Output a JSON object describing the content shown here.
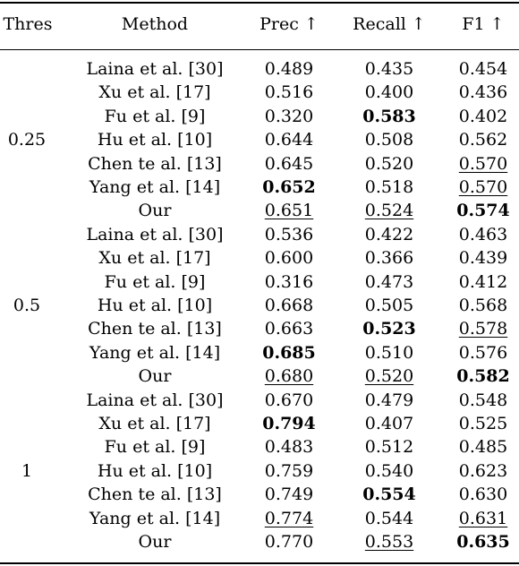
{
  "headers": {
    "thres": "Thres",
    "method": "Method",
    "prec": "Prec ↑",
    "recall": "Recall ↑",
    "f1": "F1 ↑"
  },
  "groups": [
    {
      "thres": "0.25",
      "rows": [
        {
          "method": "Laina et al. [30]",
          "prec": "0.489",
          "recall": "0.435",
          "f1": "0.454"
        },
        {
          "method": "Xu et al. [17]",
          "prec": "0.516",
          "recall": "0.400",
          "f1": "0.436"
        },
        {
          "method": "Fu et al. [9]",
          "prec": "0.320",
          "recall": "0.583",
          "f1": "0.402",
          "recall_style": "bold"
        },
        {
          "method": "Hu et al. [10]",
          "prec": "0.644",
          "recall": "0.508",
          "f1": "0.562"
        },
        {
          "method": "Chen te al. [13]",
          "prec": "0.645",
          "recall": "0.520",
          "f1": "0.570",
          "f1_style": "underline"
        },
        {
          "method": "Yang et al. [14]",
          "prec": "0.652",
          "recall": "0.518",
          "f1": "0.570",
          "prec_style": "bold",
          "f1_style": "underline"
        },
        {
          "method": "Our",
          "prec": "0.651",
          "recall": "0.524",
          "f1": "0.574",
          "prec_style": "underline",
          "recall_style": "underline",
          "f1_style": "bold"
        }
      ]
    },
    {
      "thres": "0.5",
      "rows": [
        {
          "method": "Laina et al. [30]",
          "prec": "0.536",
          "recall": "0.422",
          "f1": "0.463"
        },
        {
          "method": "Xu et al. [17]",
          "prec": "0.600",
          "recall": "0.366",
          "f1": "0.439"
        },
        {
          "method": "Fu et al. [9]",
          "prec": "0.316",
          "recall": "0.473",
          "f1": "0.412"
        },
        {
          "method": "Hu et al. [10]",
          "prec": "0.668",
          "recall": "0.505",
          "f1": "0.568"
        },
        {
          "method": "Chen te al. [13]",
          "prec": "0.663",
          "recall": "0.523",
          "f1": "0.578",
          "recall_style": "bold",
          "f1_style": "underline"
        },
        {
          "method": "Yang et al. [14]",
          "prec": "0.685",
          "recall": "0.510",
          "f1": "0.576",
          "prec_style": "bold"
        },
        {
          "method": "Our",
          "prec": "0.680",
          "recall": "0.520",
          "f1": "0.582",
          "prec_style": "underline",
          "recall_style": "underline",
          "f1_style": "bold"
        }
      ]
    },
    {
      "thres": "1",
      "rows": [
        {
          "method": "Laina et al. [30]",
          "prec": "0.670",
          "recall": "0.479",
          "f1": "0.548"
        },
        {
          "method": "Xu et al. [17]",
          "prec": "0.794",
          "recall": "0.407",
          "f1": "0.525",
          "prec_style": "bold"
        },
        {
          "method": "Fu et al. [9]",
          "prec": "0.483",
          "recall": "0.512",
          "f1": "0.485"
        },
        {
          "method": "Hu et al. [10]",
          "prec": "0.759",
          "recall": "0.540",
          "f1": "0.623"
        },
        {
          "method": "Chen te al. [13]",
          "prec": "0.749",
          "recall": "0.554",
          "f1": "0.630",
          "recall_style": "bold"
        },
        {
          "method": "Yang et al. [14]",
          "prec": "0.774",
          "recall": "0.544",
          "f1": "0.631",
          "prec_style": "underline",
          "f1_style": "underline"
        },
        {
          "method": "Our",
          "prec": "0.770",
          "recall": "0.553",
          "f1": "0.635",
          "recall_style": "underline",
          "f1_style": "bold"
        }
      ]
    }
  ]
}
